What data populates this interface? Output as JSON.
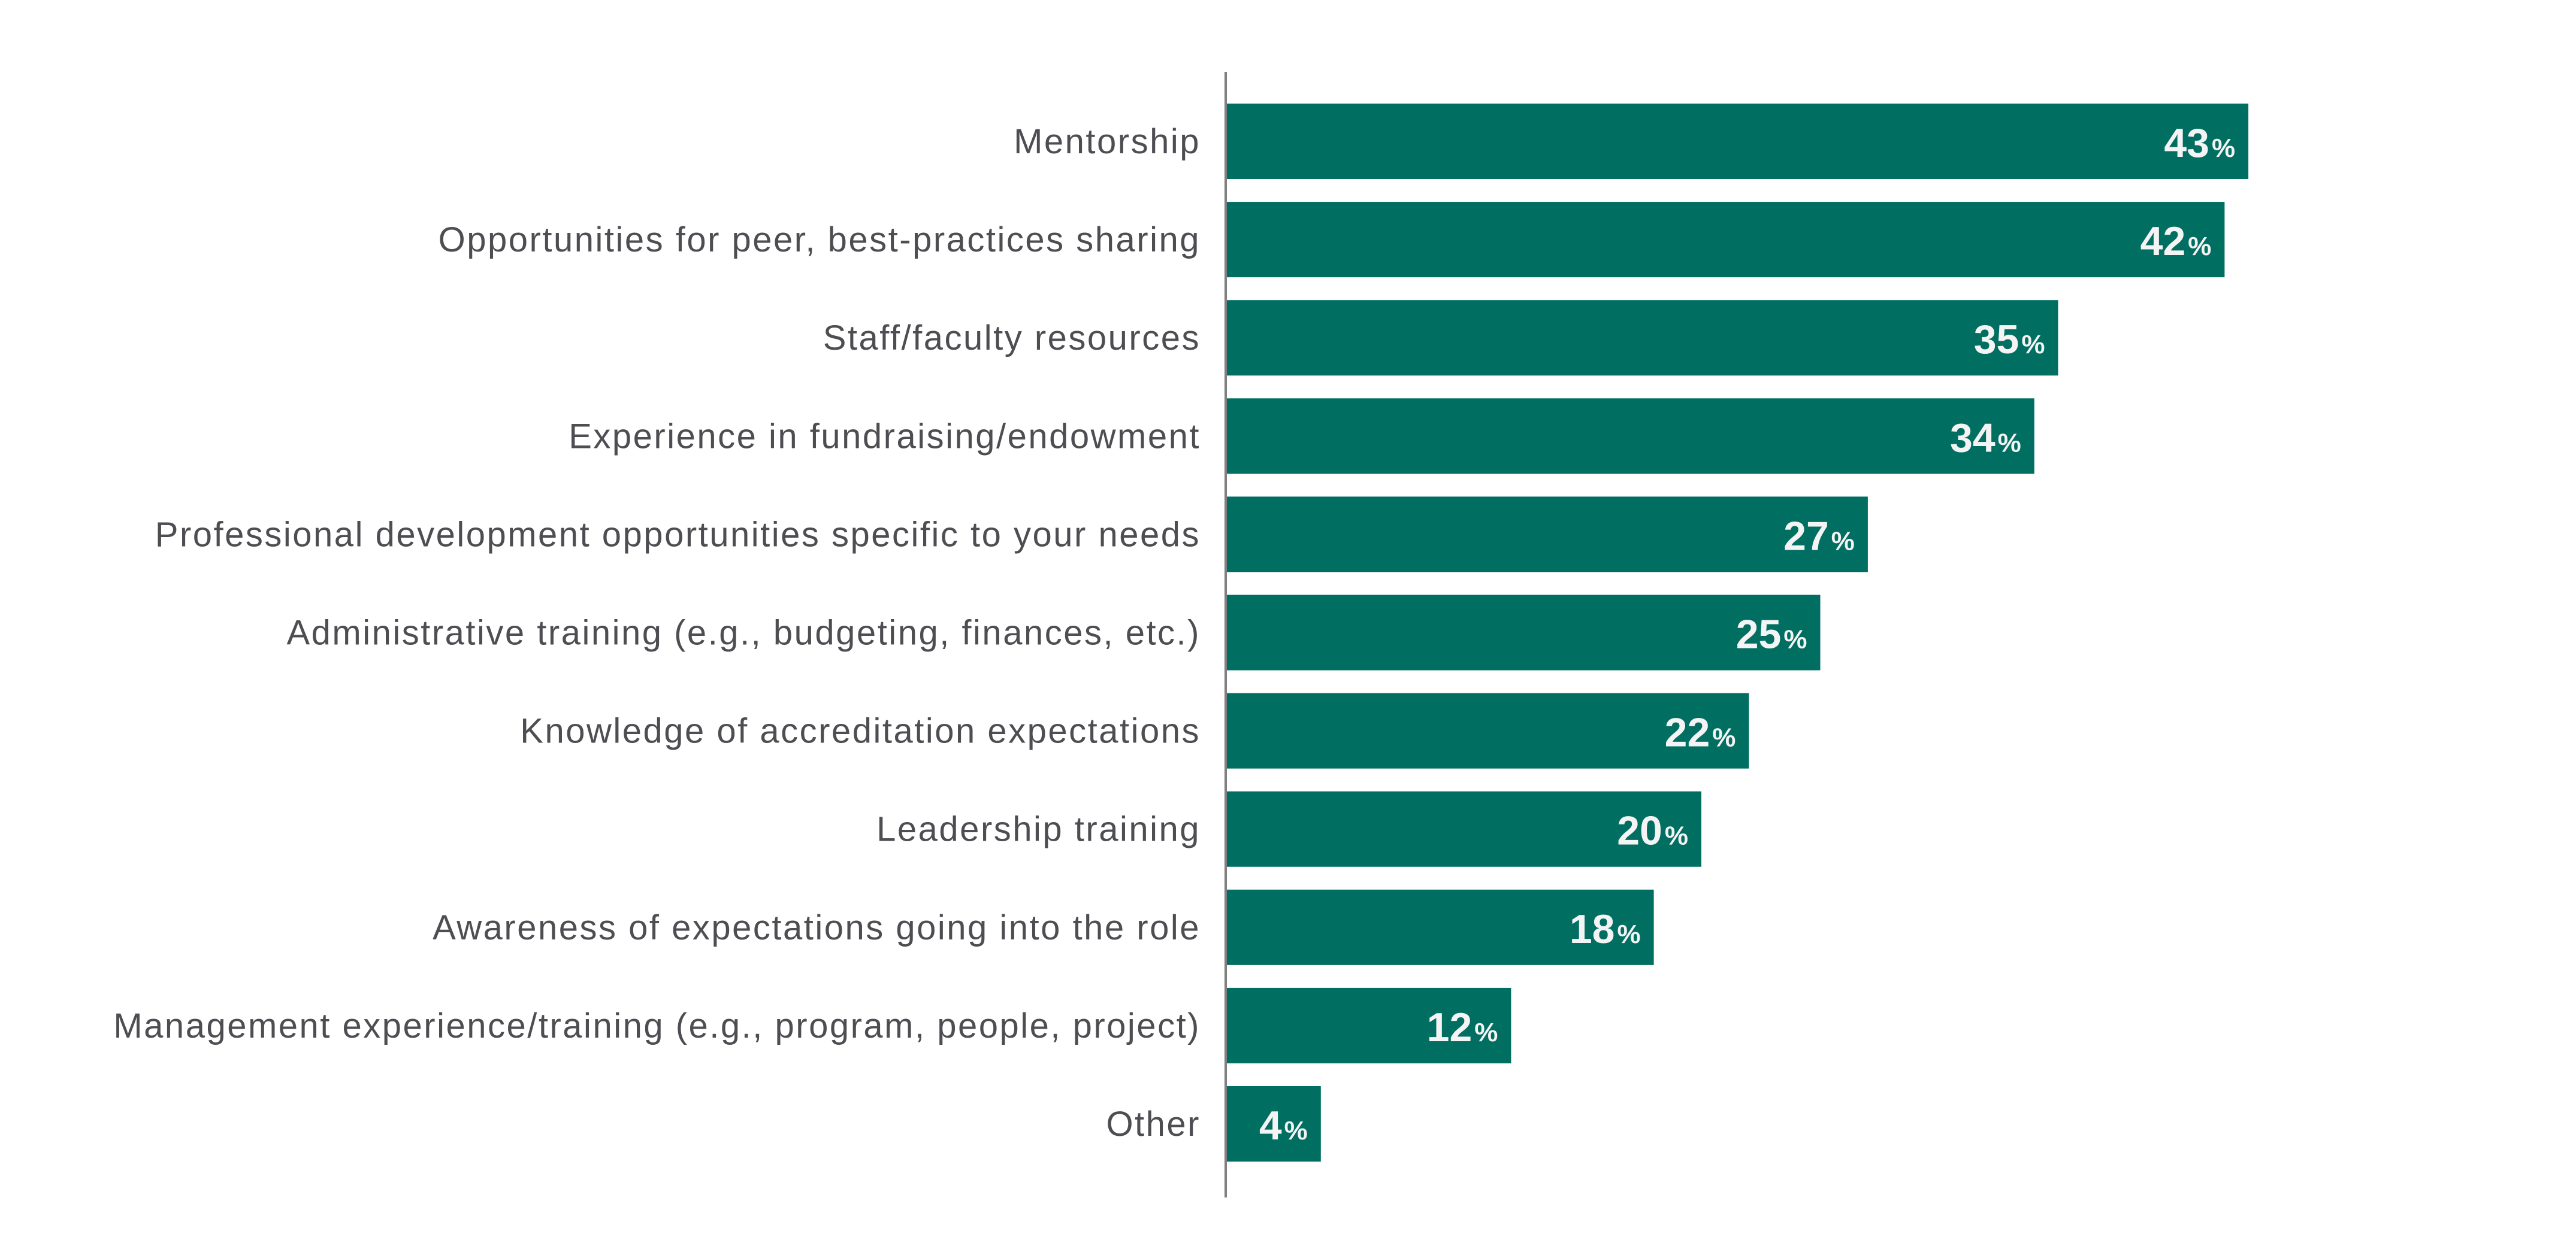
{
  "chart_data": {
    "type": "bar",
    "orientation": "horizontal",
    "title": "",
    "xlabel": "",
    "ylabel": "",
    "categories": [
      "Mentorship",
      "Opportunities for peer, best-practices sharing",
      "Staff/faculty resources",
      "Experience in fundraising/endowment",
      "Professional development opportunities specific to your needs",
      "Administrative training (e.g., budgeting, finances, etc.)",
      "Knowledge of accreditation expectations",
      "Leadership training",
      "Awareness of expectations going into the role",
      "Management experience/training (e.g., program, people, project)",
      "Other"
    ],
    "values": [
      43,
      42,
      35,
      34,
      27,
      25,
      22,
      20,
      18,
      12,
      4
    ],
    "value_suffix": "%",
    "xlim": [
      0,
      100
    ],
    "grid": false,
    "data_labels": "inside-end",
    "colors": {
      "bar": "#006f62",
      "label": "#4d4d52",
      "value_text": "#f4f4f4",
      "axis": "#808080"
    }
  }
}
